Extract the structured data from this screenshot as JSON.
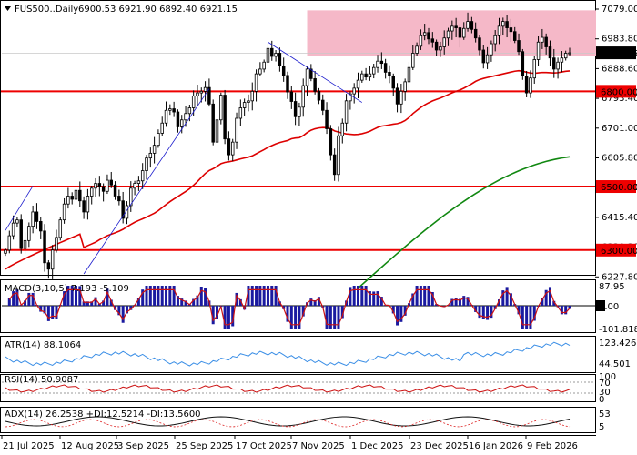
{
  "chart_data": {
    "type": "candlestick",
    "title": "FUS500..Daily",
    "ohlc_text": "6900.53 6921.90 6892.40 6921.15",
    "current_price": "6921.15",
    "x_ticks": [
      "21 Jul 2025",
      "12 Aug 2025",
      "3 Sep 2025",
      "25 Sep 2025",
      "17 Oct 2025",
      "7 Nov 2025",
      "1 Dec 2025",
      "23 Dec 2025",
      "16 Jan 2026",
      "9 Feb 2026"
    ],
    "y_ticks": [
      "7079.00",
      "6983.80",
      "6888.60",
      "6793.40",
      "6701.00",
      "6605.80",
      "6510.60",
      "6415.40",
      "6320.20",
      "6227.80"
    ],
    "ylim": [
      6227.8,
      7079.0
    ],
    "levels": [
      {
        "value": 6800.0,
        "label": "6800.00"
      },
      {
        "value": 6500.0,
        "label": "6500.00"
      },
      {
        "value": 6300.0,
        "label": "6300.00"
      }
    ],
    "resistance_zone": {
      "low": 6910,
      "high": 7055
    },
    "closes": [
      6300,
      6345,
      6385,
      6395,
      6305,
      6330,
      6375,
      6420,
      6390,
      6360,
      6260,
      6240,
      6300,
      6340,
      6395,
      6445,
      6470,
      6460,
      6488,
      6455,
      6420,
      6470,
      6495,
      6510,
      6500,
      6485,
      6520,
      6505,
      6470,
      6455,
      6400,
      6440,
      6495,
      6510,
      6518,
      6550,
      6590,
      6605,
      6630,
      6668,
      6700,
      6740,
      6745,
      6735,
      6688,
      6710,
      6730,
      6748,
      6785,
      6795,
      6800,
      6812,
      6760,
      6640,
      6710,
      6788,
      6650,
      6600,
      6640,
      6715,
      6748,
      6765,
      6770,
      6800,
      6855,
      6870,
      6892,
      6935,
      6910,
      6920,
      6880,
      6850,
      6798,
      6768,
      6720,
      6750,
      6818,
      6870,
      6840,
      6800,
      6772,
      6740,
      6682,
      6600,
      6538,
      6660,
      6700,
      6770,
      6792,
      6810,
      6835,
      6855,
      6845,
      6855,
      6875,
      6895,
      6888,
      6860,
      6848,
      6810,
      6760,
      6800,
      6830,
      6875,
      6920,
      6942,
      6975,
      6985,
      6965,
      6955,
      6930,
      6940,
      6968,
      6990,
      7005,
      7000,
      6970,
      6998,
      7020,
      6995,
      6968,
      6930,
      6890,
      6915,
      6950,
      6975,
      7005,
      7020,
      7000,
      6988,
      6960,
      6925,
      6848,
      6795,
      6842,
      6900,
      6955,
      6970,
      6940,
      6905,
      6870,
      6892,
      6905,
      6920,
      6921.15
    ],
    "sma50_first": 6240,
    "sma50_last": 6921,
    "sma200_range": [
      6180,
      6598
    ],
    "indicators": [
      {
        "name": "MACD",
        "label": "MACD(3,10,5) 7.193 -5.109",
        "ticks": [
          "87.95",
          "0.00",
          "-101.818"
        ]
      },
      {
        "name": "ATR",
        "label": "ATR(14) 88.1064",
        "ticks": [
          "123.4268",
          "44.501"
        ]
      },
      {
        "name": "RSI",
        "label": "RSI(14) 50.9087",
        "ticks": [
          "100",
          "70",
          "30",
          "0"
        ]
      },
      {
        "name": "ADX",
        "label": "ADX(14) 26.2538 +DI:12.5214 -DI:13.5600",
        "ticks": [
          "53",
          "5"
        ]
      }
    ],
    "colors": {
      "bull": "#ffffff",
      "bear": "#000000",
      "ma50": "#dd0000",
      "ma200": "#118811",
      "level": "#ee0000",
      "zone": "#f5b8c8",
      "macd_hist": "#1a1aa0",
      "atr": "#3a8ee6",
      "rsi": "#cc1111",
      "adx": "#111111",
      "pdi": "#dd2222",
      "mdi": "#dd2222",
      "trendline": "#1a1acc"
    }
  }
}
